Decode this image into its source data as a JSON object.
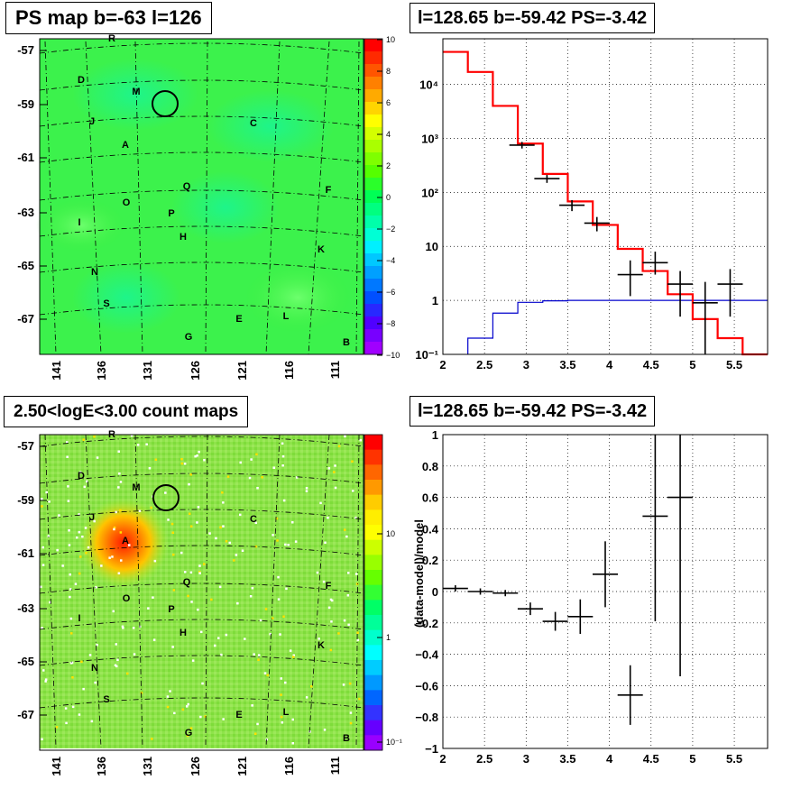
{
  "panels": {
    "tl_title": "PS map b=-63 l=126",
    "tr_title": "l=128.65 b=-59.42 PS=-3.42",
    "bl_title": "2.50<logE<3.00 count maps",
    "br_title": "l=128.65 b=-59.42 PS=-3.42"
  },
  "map_axes": {
    "yticks": [
      "-57",
      "-59",
      "-61",
      "-63",
      "-65",
      "-67"
    ],
    "xticks": [
      "141",
      "136",
      "131",
      "126",
      "121",
      "116",
      "111"
    ]
  },
  "source_labels": [
    "R",
    "D",
    "M",
    "J",
    "C",
    "A",
    "Q",
    "F",
    "O",
    "P",
    "I",
    "H",
    "K",
    "N",
    "S",
    "E",
    "L",
    "G",
    "B"
  ],
  "colorbar_top": {
    "ticks": [
      "10",
      "8",
      "6",
      "4",
      "2",
      "0",
      "−2",
      "−4",
      "−6",
      "−8",
      "−10"
    ]
  },
  "colorbar_bottom": {
    "ticks": [
      "10",
      "1",
      "10⁻¹"
    ]
  },
  "chart_data": [
    {
      "type": "line",
      "panel": "top-right",
      "log_y": true,
      "xlim": [
        2,
        5.9
      ],
      "ylim": [
        0.1,
        70000
      ],
      "xticks": [
        "2",
        "2.5",
        "3",
        "3.5",
        "4",
        "4.5",
        "5",
        "5.5"
      ],
      "yticks": [
        "10⁻¹",
        "1",
        "10",
        "10²",
        "10³",
        "10⁴"
      ],
      "data_points": {
        "x": [
          2.95,
          3.25,
          3.55,
          3.85,
          4.25,
          4.55,
          4.85,
          5.15,
          5.45
        ],
        "y": [
          750,
          180,
          58,
          27,
          3,
          5,
          2,
          0.9,
          2
        ]
      },
      "model_red_steps": {
        "edges": [
          2.0,
          2.3,
          2.6,
          2.9,
          3.2,
          3.5,
          3.8,
          4.1,
          4.4,
          4.7,
          5.0,
          5.3,
          5.6,
          5.9
        ],
        "values": [
          40000,
          17000,
          4000,
          800,
          220,
          68,
          25,
          9,
          3.5,
          1.3,
          0.45,
          0.2,
          0.1
        ]
      },
      "model_blue_steps": {
        "edges": [
          2.3,
          2.6,
          2.9,
          3.2,
          3.5,
          3.8,
          4.1,
          4.4,
          4.7,
          5.0,
          5.3,
          5.6,
          5.9
        ],
        "values": [
          0.2,
          0.58,
          0.92,
          0.98,
          1.0,
          1.0,
          1.0,
          1.0,
          1.0,
          1.0,
          1.0,
          1.0
        ]
      }
    },
    {
      "type": "scatter",
      "panel": "bottom-right",
      "xlim": [
        2,
        5.9
      ],
      "ylim": [
        -1,
        1
      ],
      "xticks": [
        "2",
        "2.5",
        "3",
        "3.5",
        "4",
        "4.5",
        "5",
        "5.5"
      ],
      "yticks": [
        "−1",
        "−0.8",
        "−0.6",
        "−0.4",
        "−0.2",
        "0",
        "0.2",
        "0.4",
        "0.6",
        "0.8",
        "1"
      ],
      "ylabel": "(data-model)/model",
      "points": {
        "x": [
          2.15,
          2.45,
          2.75,
          3.05,
          3.35,
          3.65,
          3.95,
          4.25,
          4.55,
          4.85
        ],
        "y": [
          0.02,
          0.0,
          -0.01,
          -0.11,
          -0.19,
          -0.16,
          0.11,
          -0.66,
          0.48,
          0.6
        ],
        "err": [
          0.02,
          0.02,
          0.02,
          0.04,
          0.06,
          0.11,
          0.21,
          0.19,
          0.67,
          1.14
        ]
      }
    }
  ]
}
